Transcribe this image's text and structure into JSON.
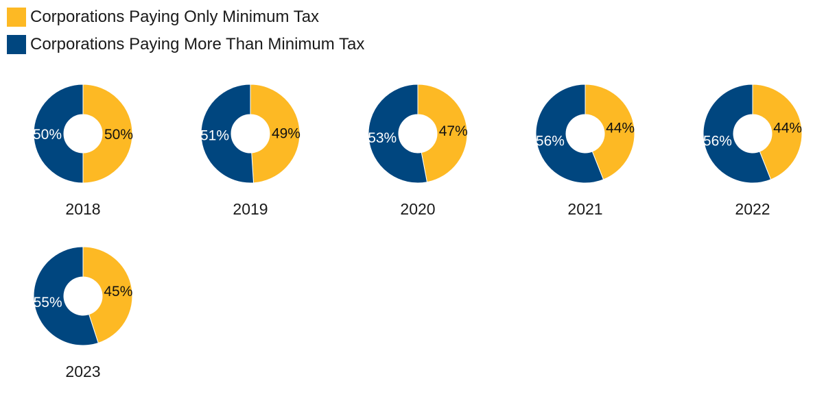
{
  "colors": {
    "only_minimum": "#FDB924",
    "more_than_minimum": "#00467F"
  },
  "legend": [
    {
      "label": "Corporations Paying Only Minimum Tax",
      "color": "#FDB924"
    },
    {
      "label": "Corporations Paying More Than Minimum Tax",
      "color": "#00467F"
    }
  ],
  "chart_data": {
    "type": "pie",
    "title": "",
    "series_names": [
      "Corporations Paying Only Minimum Tax",
      "Corporations Paying More Than Minimum Tax"
    ],
    "charts": [
      {
        "year": "2018",
        "values": [
          50,
          50
        ],
        "labels": [
          "50%",
          "50%"
        ]
      },
      {
        "year": "2019",
        "values": [
          49,
          51
        ],
        "labels": [
          "49%",
          "51%"
        ]
      },
      {
        "year": "2020",
        "values": [
          47,
          53
        ],
        "labels": [
          "47%",
          "53%"
        ]
      },
      {
        "year": "2021",
        "values": [
          44,
          56
        ],
        "labels": [
          "44%",
          "56%"
        ]
      },
      {
        "year": "2022",
        "values": [
          44,
          56
        ],
        "labels": [
          "44%",
          "56%"
        ]
      },
      {
        "year": "2023",
        "values": [
          45,
          55
        ],
        "labels": [
          "45%",
          "55%"
        ]
      }
    ]
  }
}
